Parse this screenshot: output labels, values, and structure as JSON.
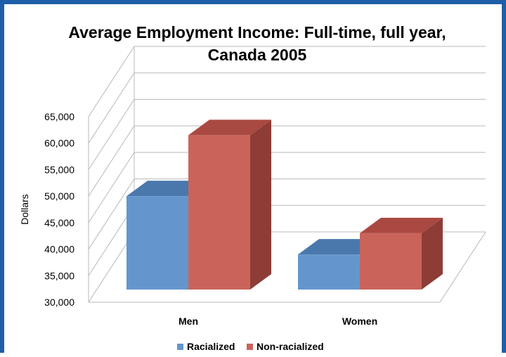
{
  "colors": {
    "frame": "#1f5fa8",
    "gridline": "#b8b8b8",
    "text": "#000000"
  },
  "chart_data": {
    "type": "bar",
    "title_lines": [
      "Average Employment Income:  Full-time, full year,",
      "Canada 2005"
    ],
    "xlabel": "",
    "ylabel": "Dollars",
    "categories": [
      "Men",
      "Women"
    ],
    "series": [
      {
        "name": "Racialized",
        "values": [
          50000,
          39000
        ],
        "colors": {
          "front": "#6496cd",
          "top": "#4a78ad",
          "side": "#3d6796"
        }
      },
      {
        "name": "Non-racialized",
        "values": [
          61500,
          43000
        ],
        "colors": {
          "front": "#ca645b",
          "top": "#a94941",
          "side": "#8d3d36"
        }
      }
    ],
    "ylim": [
      30000,
      65000
    ],
    "y_ticks": [
      30000,
      35000,
      40000,
      45000,
      50000,
      55000,
      60000,
      65000
    ],
    "y_tick_labels": [
      "30,000",
      "35,000",
      "40,000",
      "45,000",
      "50,000",
      "55,000",
      "60,000",
      "65,000"
    ],
    "grid": true,
    "three_d": true,
    "legend_position": "bottom"
  }
}
